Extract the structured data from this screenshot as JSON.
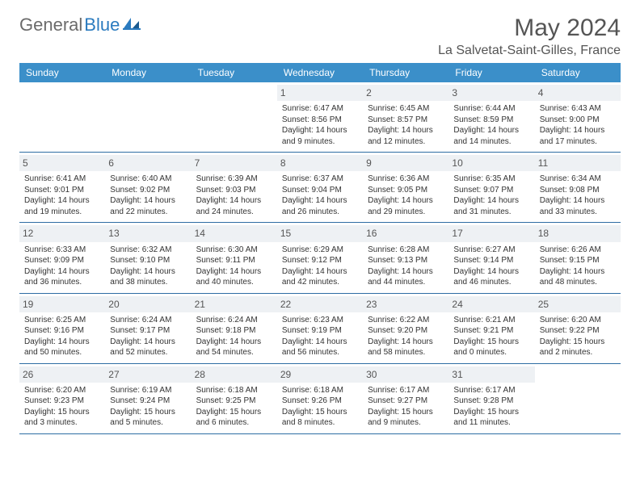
{
  "header": {
    "logo_text_gray": "General",
    "logo_text_blue": "Blue",
    "month_title": "May 2024",
    "location": "La Salvetat-Saint-Gilles, France"
  },
  "colors": {
    "header_bg": "#3b8fc9",
    "header_text": "#ffffff",
    "daynum_bg": "#eef1f4",
    "border": "#2e6da4",
    "logo_gray": "#6b6b6b",
    "logo_blue": "#2b7bbf"
  },
  "day_names": [
    "Sunday",
    "Monday",
    "Tuesday",
    "Wednesday",
    "Thursday",
    "Friday",
    "Saturday"
  ],
  "weeks": [
    [
      {
        "empty": true
      },
      {
        "empty": true
      },
      {
        "empty": true
      },
      {
        "num": "1",
        "sunrise": "Sunrise: 6:47 AM",
        "sunset": "Sunset: 8:56 PM",
        "daylight1": "Daylight: 14 hours",
        "daylight2": "and 9 minutes."
      },
      {
        "num": "2",
        "sunrise": "Sunrise: 6:45 AM",
        "sunset": "Sunset: 8:57 PM",
        "daylight1": "Daylight: 14 hours",
        "daylight2": "and 12 minutes."
      },
      {
        "num": "3",
        "sunrise": "Sunrise: 6:44 AM",
        "sunset": "Sunset: 8:59 PM",
        "daylight1": "Daylight: 14 hours",
        "daylight2": "and 14 minutes."
      },
      {
        "num": "4",
        "sunrise": "Sunrise: 6:43 AM",
        "sunset": "Sunset: 9:00 PM",
        "daylight1": "Daylight: 14 hours",
        "daylight2": "and 17 minutes."
      }
    ],
    [
      {
        "num": "5",
        "sunrise": "Sunrise: 6:41 AM",
        "sunset": "Sunset: 9:01 PM",
        "daylight1": "Daylight: 14 hours",
        "daylight2": "and 19 minutes."
      },
      {
        "num": "6",
        "sunrise": "Sunrise: 6:40 AM",
        "sunset": "Sunset: 9:02 PM",
        "daylight1": "Daylight: 14 hours",
        "daylight2": "and 22 minutes."
      },
      {
        "num": "7",
        "sunrise": "Sunrise: 6:39 AM",
        "sunset": "Sunset: 9:03 PM",
        "daylight1": "Daylight: 14 hours",
        "daylight2": "and 24 minutes."
      },
      {
        "num": "8",
        "sunrise": "Sunrise: 6:37 AM",
        "sunset": "Sunset: 9:04 PM",
        "daylight1": "Daylight: 14 hours",
        "daylight2": "and 26 minutes."
      },
      {
        "num": "9",
        "sunrise": "Sunrise: 6:36 AM",
        "sunset": "Sunset: 9:05 PM",
        "daylight1": "Daylight: 14 hours",
        "daylight2": "and 29 minutes."
      },
      {
        "num": "10",
        "sunrise": "Sunrise: 6:35 AM",
        "sunset": "Sunset: 9:07 PM",
        "daylight1": "Daylight: 14 hours",
        "daylight2": "and 31 minutes."
      },
      {
        "num": "11",
        "sunrise": "Sunrise: 6:34 AM",
        "sunset": "Sunset: 9:08 PM",
        "daylight1": "Daylight: 14 hours",
        "daylight2": "and 33 minutes."
      }
    ],
    [
      {
        "num": "12",
        "sunrise": "Sunrise: 6:33 AM",
        "sunset": "Sunset: 9:09 PM",
        "daylight1": "Daylight: 14 hours",
        "daylight2": "and 36 minutes."
      },
      {
        "num": "13",
        "sunrise": "Sunrise: 6:32 AM",
        "sunset": "Sunset: 9:10 PM",
        "daylight1": "Daylight: 14 hours",
        "daylight2": "and 38 minutes."
      },
      {
        "num": "14",
        "sunrise": "Sunrise: 6:30 AM",
        "sunset": "Sunset: 9:11 PM",
        "daylight1": "Daylight: 14 hours",
        "daylight2": "and 40 minutes."
      },
      {
        "num": "15",
        "sunrise": "Sunrise: 6:29 AM",
        "sunset": "Sunset: 9:12 PM",
        "daylight1": "Daylight: 14 hours",
        "daylight2": "and 42 minutes."
      },
      {
        "num": "16",
        "sunrise": "Sunrise: 6:28 AM",
        "sunset": "Sunset: 9:13 PM",
        "daylight1": "Daylight: 14 hours",
        "daylight2": "and 44 minutes."
      },
      {
        "num": "17",
        "sunrise": "Sunrise: 6:27 AM",
        "sunset": "Sunset: 9:14 PM",
        "daylight1": "Daylight: 14 hours",
        "daylight2": "and 46 minutes."
      },
      {
        "num": "18",
        "sunrise": "Sunrise: 6:26 AM",
        "sunset": "Sunset: 9:15 PM",
        "daylight1": "Daylight: 14 hours",
        "daylight2": "and 48 minutes."
      }
    ],
    [
      {
        "num": "19",
        "sunrise": "Sunrise: 6:25 AM",
        "sunset": "Sunset: 9:16 PM",
        "daylight1": "Daylight: 14 hours",
        "daylight2": "and 50 minutes."
      },
      {
        "num": "20",
        "sunrise": "Sunrise: 6:24 AM",
        "sunset": "Sunset: 9:17 PM",
        "daylight1": "Daylight: 14 hours",
        "daylight2": "and 52 minutes."
      },
      {
        "num": "21",
        "sunrise": "Sunrise: 6:24 AM",
        "sunset": "Sunset: 9:18 PM",
        "daylight1": "Daylight: 14 hours",
        "daylight2": "and 54 minutes."
      },
      {
        "num": "22",
        "sunrise": "Sunrise: 6:23 AM",
        "sunset": "Sunset: 9:19 PM",
        "daylight1": "Daylight: 14 hours",
        "daylight2": "and 56 minutes."
      },
      {
        "num": "23",
        "sunrise": "Sunrise: 6:22 AM",
        "sunset": "Sunset: 9:20 PM",
        "daylight1": "Daylight: 14 hours",
        "daylight2": "and 58 minutes."
      },
      {
        "num": "24",
        "sunrise": "Sunrise: 6:21 AM",
        "sunset": "Sunset: 9:21 PM",
        "daylight1": "Daylight: 15 hours",
        "daylight2": "and 0 minutes."
      },
      {
        "num": "25",
        "sunrise": "Sunrise: 6:20 AM",
        "sunset": "Sunset: 9:22 PM",
        "daylight1": "Daylight: 15 hours",
        "daylight2": "and 2 minutes."
      }
    ],
    [
      {
        "num": "26",
        "sunrise": "Sunrise: 6:20 AM",
        "sunset": "Sunset: 9:23 PM",
        "daylight1": "Daylight: 15 hours",
        "daylight2": "and 3 minutes."
      },
      {
        "num": "27",
        "sunrise": "Sunrise: 6:19 AM",
        "sunset": "Sunset: 9:24 PM",
        "daylight1": "Daylight: 15 hours",
        "daylight2": "and 5 minutes."
      },
      {
        "num": "28",
        "sunrise": "Sunrise: 6:18 AM",
        "sunset": "Sunset: 9:25 PM",
        "daylight1": "Daylight: 15 hours",
        "daylight2": "and 6 minutes."
      },
      {
        "num": "29",
        "sunrise": "Sunrise: 6:18 AM",
        "sunset": "Sunset: 9:26 PM",
        "daylight1": "Daylight: 15 hours",
        "daylight2": "and 8 minutes."
      },
      {
        "num": "30",
        "sunrise": "Sunrise: 6:17 AM",
        "sunset": "Sunset: 9:27 PM",
        "daylight1": "Daylight: 15 hours",
        "daylight2": "and 9 minutes."
      },
      {
        "num": "31",
        "sunrise": "Sunrise: 6:17 AM",
        "sunset": "Sunset: 9:28 PM",
        "daylight1": "Daylight: 15 hours",
        "daylight2": "and 11 minutes."
      },
      {
        "empty": true
      }
    ]
  ]
}
